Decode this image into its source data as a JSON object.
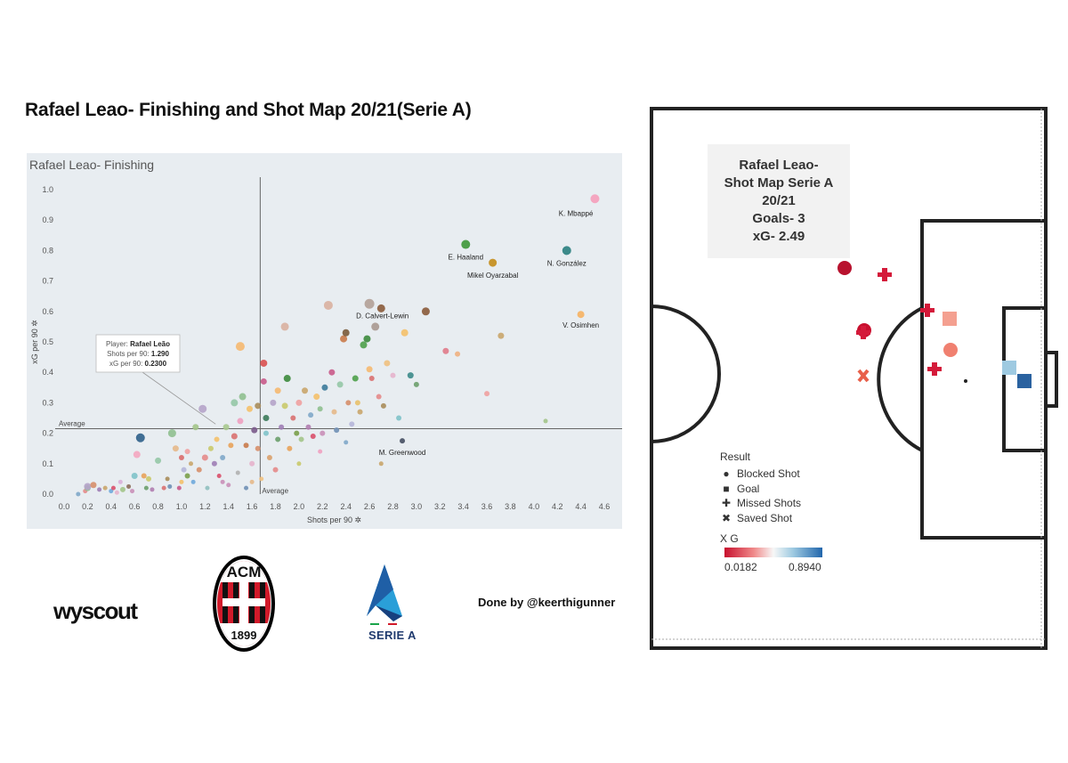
{
  "main_title": "Rafael Leao- Finishing and Shot Map 20/21(Serie A)",
  "chart_data": [
    {
      "type": "scatter",
      "title": "Rafael Leao- Finishing",
      "xlabel": "Shots per 90",
      "ylabel": "xG per 90",
      "xlim": [
        0,
        4.6
      ],
      "ylim": [
        0,
        1.0
      ],
      "x_ticks": [
        "0.0",
        "0.2",
        "0.4",
        "0.6",
        "0.8",
        "1.0",
        "1.2",
        "1.4",
        "1.6",
        "1.8",
        "2.0",
        "2.2",
        "2.4",
        "2.6",
        "2.8",
        "3.0",
        "3.2",
        "3.4",
        "3.6",
        "3.8",
        "4.0",
        "4.2",
        "4.4",
        "4.6"
      ],
      "y_ticks": [
        "0.0",
        "0.1",
        "0.2",
        "0.3",
        "0.4",
        "0.5",
        "0.6",
        "0.7",
        "0.8",
        "0.9",
        "1.0"
      ],
      "grid": false,
      "avg_x": 1.67,
      "avg_y": 0.215,
      "avg_x_label": "Average",
      "avg_y_label": "Average",
      "tooltip": {
        "player_label": "Player:",
        "player": "Rafael Leão",
        "shots_label": "Shots per 90:",
        "shots": "1.290",
        "xg_label": "xG per 90:",
        "xg": "0.2300"
      },
      "labeled_points": [
        {
          "name": "K. Mbappé",
          "x": 4.52,
          "y": 0.97,
          "color": "#f4a6c0",
          "size": 9
        },
        {
          "name": "E. Haaland",
          "x": 3.42,
          "y": 0.82,
          "color": "#4ea04a",
          "size": 9
        },
        {
          "name": "N. González",
          "x": 4.28,
          "y": 0.8,
          "color": "#3c8a8a",
          "size": 9
        },
        {
          "name": "Mikel Oyarzabal",
          "x": 3.65,
          "y": 0.76,
          "color": "#c8962e",
          "size": 8
        },
        {
          "name": "D. Calvert-Lewin",
          "x": 2.6,
          "y": 0.625,
          "color": "#b8a8a0",
          "size": 10
        },
        {
          "name": "V. Osimhen",
          "x": 4.4,
          "y": 0.59,
          "color": "#f5b870",
          "size": 7
        },
        {
          "name": "M. Greenwood",
          "x": 2.88,
          "y": 0.175,
          "color": "#555e70",
          "size": 5
        }
      ],
      "points": [
        [
          0.12,
          0.0,
          "#7fa7c9",
          4
        ],
        [
          0.18,
          0.01,
          "#e48a8a",
          4
        ],
        [
          0.2,
          0.02,
          "#8fbf8f",
          6
        ],
        [
          0.2,
          0.025,
          "#b5a3c9",
          7
        ],
        [
          0.25,
          0.03,
          "#d68e6a",
          6
        ],
        [
          0.3,
          0.015,
          "#9e7db5",
          4
        ],
        [
          0.35,
          0.02,
          "#c9a56b",
          4
        ],
        [
          0.4,
          0.01,
          "#6fa8dc",
          4
        ],
        [
          0.42,
          0.02,
          "#d94f6a",
          4
        ],
        [
          0.45,
          0.005,
          "#e6b3cc",
          4
        ],
        [
          0.5,
          0.015,
          "#a3c48a",
          5
        ],
        [
          0.55,
          0.025,
          "#8c6d5a",
          4
        ],
        [
          0.58,
          0.01,
          "#c98fb8",
          4
        ],
        [
          0.6,
          0.06,
          "#7fc2c9",
          6
        ],
        [
          0.62,
          0.13,
          "#f4a6c0",
          7
        ],
        [
          0.65,
          0.185,
          "#2d5f8a",
          9
        ],
        [
          0.68,
          0.06,
          "#e8a25a",
          5
        ],
        [
          0.7,
          0.02,
          "#6b9e6b",
          4
        ],
        [
          0.72,
          0.05,
          "#c9c96b",
          5
        ],
        [
          0.75,
          0.015,
          "#b07db0",
          4
        ],
        [
          0.8,
          0.11,
          "#95c6a6",
          6
        ],
        [
          0.85,
          0.02,
          "#d97070",
          4
        ],
        [
          0.88,
          0.05,
          "#a88c5a",
          4
        ],
        [
          0.9,
          0.025,
          "#6f8fb5",
          4
        ],
        [
          0.92,
          0.2,
          "#8fbf8f",
          8
        ],
        [
          0.95,
          0.15,
          "#e6b88a",
          6
        ],
        [
          0.98,
          0.02,
          "#c95a8a",
          4
        ],
        [
          1.0,
          0.12,
          "#d96b6b",
          5
        ],
        [
          1.02,
          0.08,
          "#b5b5d9",
          5
        ],
        [
          1.05,
          0.06,
          "#7a9e4a",
          5
        ],
        [
          1.05,
          0.14,
          "#f0a0a0",
          5
        ],
        [
          1.08,
          0.1,
          "#c9a56b",
          4
        ],
        [
          1.1,
          0.04,
          "#6fa8dc",
          4
        ],
        [
          1.12,
          0.22,
          "#a3c48a",
          6
        ],
        [
          1.15,
          0.08,
          "#d68e6a",
          5
        ],
        [
          1.18,
          0.28,
          "#b5a3c9",
          8
        ],
        [
          1.2,
          0.12,
          "#e48a8a",
          6
        ],
        [
          1.22,
          0.02,
          "#8fbfbf",
          4
        ],
        [
          1.25,
          0.15,
          "#c9c96b",
          5
        ],
        [
          1.28,
          0.1,
          "#9e7db5",
          5
        ],
        [
          1.3,
          0.18,
          "#f4c06a",
          5
        ],
        [
          1.32,
          0.06,
          "#d94f6a",
          4
        ],
        [
          1.35,
          0.12,
          "#7fa7c9",
          5
        ],
        [
          1.38,
          0.22,
          "#a8c98f",
          6
        ],
        [
          1.4,
          0.03,
          "#c98fb8",
          4
        ],
        [
          1.42,
          0.16,
          "#e8a25a",
          5
        ],
        [
          1.45,
          0.3,
          "#95c6a6",
          7
        ],
        [
          1.45,
          0.19,
          "#d97070",
          6
        ],
        [
          1.48,
          0.07,
          "#b0b0b0",
          4
        ],
        [
          1.5,
          0.485,
          "#f5b870",
          9
        ],
        [
          1.5,
          0.24,
          "#f0a0c0",
          6
        ],
        [
          1.52,
          0.32,
          "#8fbf8f",
          7
        ],
        [
          1.55,
          0.16,
          "#c97a4a",
          5
        ],
        [
          1.55,
          0.02,
          "#6f8fb5",
          4
        ],
        [
          1.58,
          0.28,
          "#f4c06a",
          6
        ],
        [
          1.6,
          0.1,
          "#e6b3cc",
          5
        ],
        [
          1.62,
          0.21,
          "#7a5a8a",
          6
        ],
        [
          1.65,
          0.15,
          "#d68e6a",
          5
        ],
        [
          1.65,
          0.29,
          "#a88c5a",
          6
        ],
        [
          1.68,
          0.05,
          "#f0c080",
          4
        ],
        [
          1.7,
          0.43,
          "#d94f4f",
          7
        ],
        [
          1.7,
          0.37,
          "#c95a8a",
          6
        ],
        [
          1.72,
          0.2,
          "#7fc2c9",
          5
        ],
        [
          1.72,
          0.25,
          "#3c7a5a",
          6
        ],
        [
          1.75,
          0.12,
          "#d9a06b",
          5
        ],
        [
          1.78,
          0.3,
          "#b5a3c9",
          6
        ],
        [
          1.8,
          0.08,
          "#e48a8a",
          5
        ],
        [
          1.82,
          0.34,
          "#f5b870",
          6
        ],
        [
          1.82,
          0.18,
          "#6b9e6b",
          5
        ],
        [
          1.85,
          0.22,
          "#9e7db5",
          5
        ],
        [
          1.88,
          0.29,
          "#c9c96b",
          6
        ],
        [
          1.88,
          0.55,
          "#d9b0a0",
          8
        ],
        [
          1.9,
          0.38,
          "#3c8a3c",
          7
        ],
        [
          1.92,
          0.15,
          "#e8a25a",
          5
        ],
        [
          1.95,
          0.25,
          "#d97070",
          5
        ],
        [
          1.98,
          0.2,
          "#7a9e4a",
          5
        ],
        [
          2.0,
          0.3,
          "#f0a0a0",
          6
        ],
        [
          2.02,
          0.18,
          "#a3c48a",
          5
        ],
        [
          2.05,
          0.34,
          "#c9a56b",
          6
        ],
        [
          2.08,
          0.22,
          "#b07db0",
          5
        ],
        [
          2.1,
          0.26,
          "#7fa7c9",
          5
        ],
        [
          2.12,
          0.19,
          "#d94f6a",
          5
        ],
        [
          2.15,
          0.32,
          "#f4c06a",
          6
        ],
        [
          2.18,
          0.28,
          "#8fbf8f",
          5
        ],
        [
          2.2,
          0.2,
          "#c98fb8",
          5
        ],
        [
          2.22,
          0.35,
          "#3c7a9a",
          6
        ],
        [
          2.25,
          0.62,
          "#d9b0a0",
          9
        ],
        [
          2.28,
          0.4,
          "#c95a8a",
          6
        ],
        [
          2.3,
          0.27,
          "#e6b88a",
          5
        ],
        [
          2.32,
          0.21,
          "#6f8fb5",
          5
        ],
        [
          2.35,
          0.36,
          "#95c6a6",
          6
        ],
        [
          2.38,
          0.51,
          "#c97a4a",
          7
        ],
        [
          2.4,
          0.53,
          "#7a5a3a",
          7
        ],
        [
          2.42,
          0.3,
          "#d68e6a",
          5
        ],
        [
          2.45,
          0.23,
          "#b5b5d9",
          5
        ],
        [
          2.48,
          0.38,
          "#4ea04a",
          6
        ],
        [
          2.5,
          0.3,
          "#e8c06a",
          5
        ],
        [
          2.52,
          0.27,
          "#c9a56b",
          5
        ],
        [
          2.55,
          0.49,
          "#4ea04a",
          7
        ],
        [
          2.58,
          0.51,
          "#3c8a3c",
          7
        ],
        [
          2.6,
          0.41,
          "#f5b870",
          6
        ],
        [
          2.62,
          0.38,
          "#d97070",
          5
        ],
        [
          2.65,
          0.55,
          "#a89890",
          8
        ],
        [
          2.68,
          0.32,
          "#e48a8a",
          5
        ],
        [
          2.7,
          0.61,
          "#8a5a3a",
          8
        ],
        [
          2.72,
          0.29,
          "#a88c5a",
          5
        ],
        [
          2.75,
          0.43,
          "#f0c080",
          6
        ],
        [
          2.8,
          0.39,
          "#e6b3cc",
          5
        ],
        [
          2.85,
          0.25,
          "#7fc2c9",
          5
        ],
        [
          2.9,
          0.53,
          "#f4c06a",
          7
        ],
        [
          2.95,
          0.39,
          "#3c8a8a",
          6
        ],
        [
          3.0,
          0.36,
          "#6b9e6b",
          5
        ],
        [
          3.08,
          0.6,
          "#8a5a3a",
          8
        ],
        [
          3.25,
          0.47,
          "#e07a8a",
          6
        ],
        [
          3.35,
          0.46,
          "#f0b080",
          5
        ],
        [
          3.6,
          0.33,
          "#f0a0a0",
          5
        ],
        [
          3.72,
          0.52,
          "#c9a56b",
          6
        ],
        [
          4.1,
          0.24,
          "#a3c48a",
          4
        ],
        [
          0.48,
          0.04,
          "#d9b0d9",
          4
        ],
        [
          1.0,
          0.04,
          "#f4c06a",
          4
        ],
        [
          1.6,
          0.04,
          "#e6b88a",
          4
        ],
        [
          2.0,
          0.1,
          "#c9c96b",
          4
        ],
        [
          2.4,
          0.17,
          "#7fa7c9",
          4
        ],
        [
          2.7,
          0.1,
          "#c9a56b",
          4
        ],
        [
          2.18,
          0.14,
          "#f0a0c0",
          4
        ],
        [
          1.35,
          0.04,
          "#c98fb8",
          4
        ]
      ]
    }
  ],
  "shot_map": {
    "info_lines": [
      "Rafael Leao-",
      "Shot Map Serie A",
      "20/21",
      "Goals- 3",
      "xG- 2.49"
    ],
    "legend_title": "Result",
    "legend": [
      {
        "symbol": "●",
        "label": "Blocked Shot"
      },
      {
        "symbol": "■",
        "label": "Goal"
      },
      {
        "symbol": "✚",
        "label": "Missed Shots"
      },
      {
        "symbol": "✖",
        "label": "Saved Shot"
      }
    ],
    "xg_title": "X G",
    "xg_min": "0.0182",
    "xg_max": "0.8940"
  },
  "logos": {
    "wyscout": "wyscout",
    "acm": "ACM",
    "acm_year": "1899",
    "serie_a": "SERIE A"
  },
  "credit": "Done by @keerthigunner",
  "colors": {
    "panel_bg": "#e8edf1",
    "acm_red": "#d11a2a",
    "serie_a_blue": "#1f3a6e",
    "xg_low": "#c8102e",
    "xg_high": "#2166ac"
  }
}
